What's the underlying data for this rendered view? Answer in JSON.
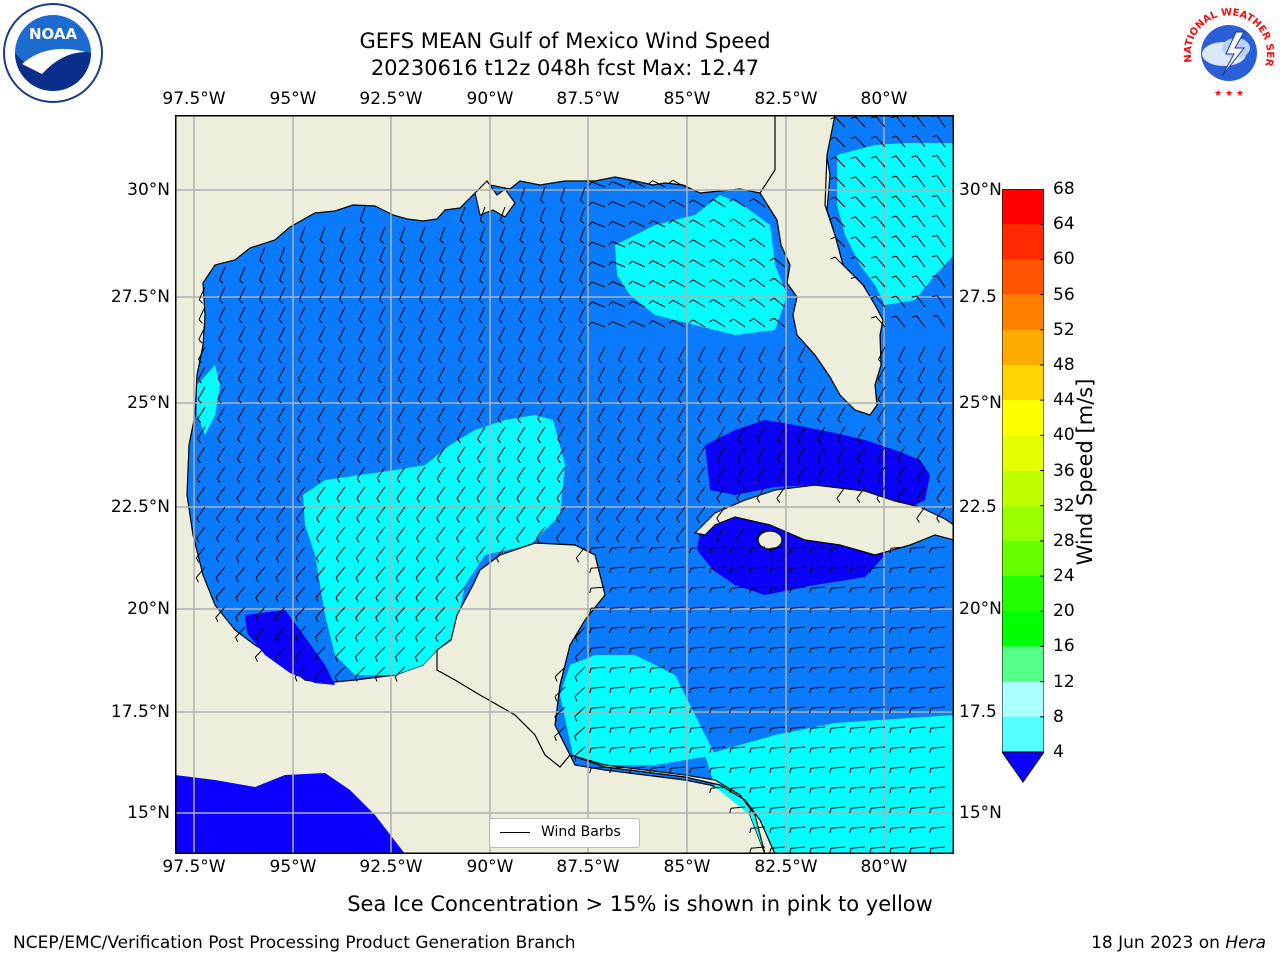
{
  "title": {
    "line1": "GEFS MEAN Gulf of Mexico Wind Speed",
    "line2": "20230616 t12z 048h fcst   Max: 12.47"
  },
  "map": {
    "lon_labels": [
      "97.5°W",
      "95°W",
      "92.5°W",
      "90°W",
      "87.5°W",
      "85°W",
      "82.5°W",
      "80°W"
    ],
    "lat_labels_left": [
      "30°N",
      "27.5°N",
      "25°N",
      "22.5°N",
      "20°N",
      "17.5°N",
      "15°N"
    ],
    "lat_labels_right": [
      "30°N",
      "27.5",
      "25°N",
      "22.5",
      "20°N",
      "17.5",
      "15°N"
    ],
    "legend_label": "Wind Barbs",
    "colors": {
      "land": "#eeeedd",
      "ocean_4_8": "#0a7bff",
      "ocean_8_12": "#00ffff",
      "ocean_lt_4": "#0b00ff"
    }
  },
  "colorbar": {
    "label": "Wind Speed [m/s]",
    "ticks": [
      "68",
      "64",
      "60",
      "56",
      "52",
      "48",
      "44",
      "40",
      "36",
      "32",
      "28",
      "24",
      "20",
      "16",
      "12",
      "8",
      "4"
    ],
    "colors": [
      "#ff0000",
      "#ff2a00",
      "#ff5500",
      "#ff7f00",
      "#ffaa00",
      "#ffd400",
      "#ffff00",
      "#e5ff00",
      "#bfff00",
      "#99ff00",
      "#66ff00",
      "#22ff00",
      "#00ff00",
      "#55ff88",
      "#aaffff",
      "#55ffff",
      "#00ffff",
      "#0a7bff"
    ],
    "extend_color": "#0b00ff"
  },
  "note": "Sea Ice Concentration > 15% is shown in pink to yellow",
  "footer": {
    "left": "NCEP/EMC/Verification Post Processing Product Generation Branch",
    "right_date": "18 Jun 2023 on ",
    "right_host": "Hera"
  },
  "logos": {
    "noaa_text": "NOAA",
    "nws_text": "NATIONAL WEATHER SERVICE"
  }
}
